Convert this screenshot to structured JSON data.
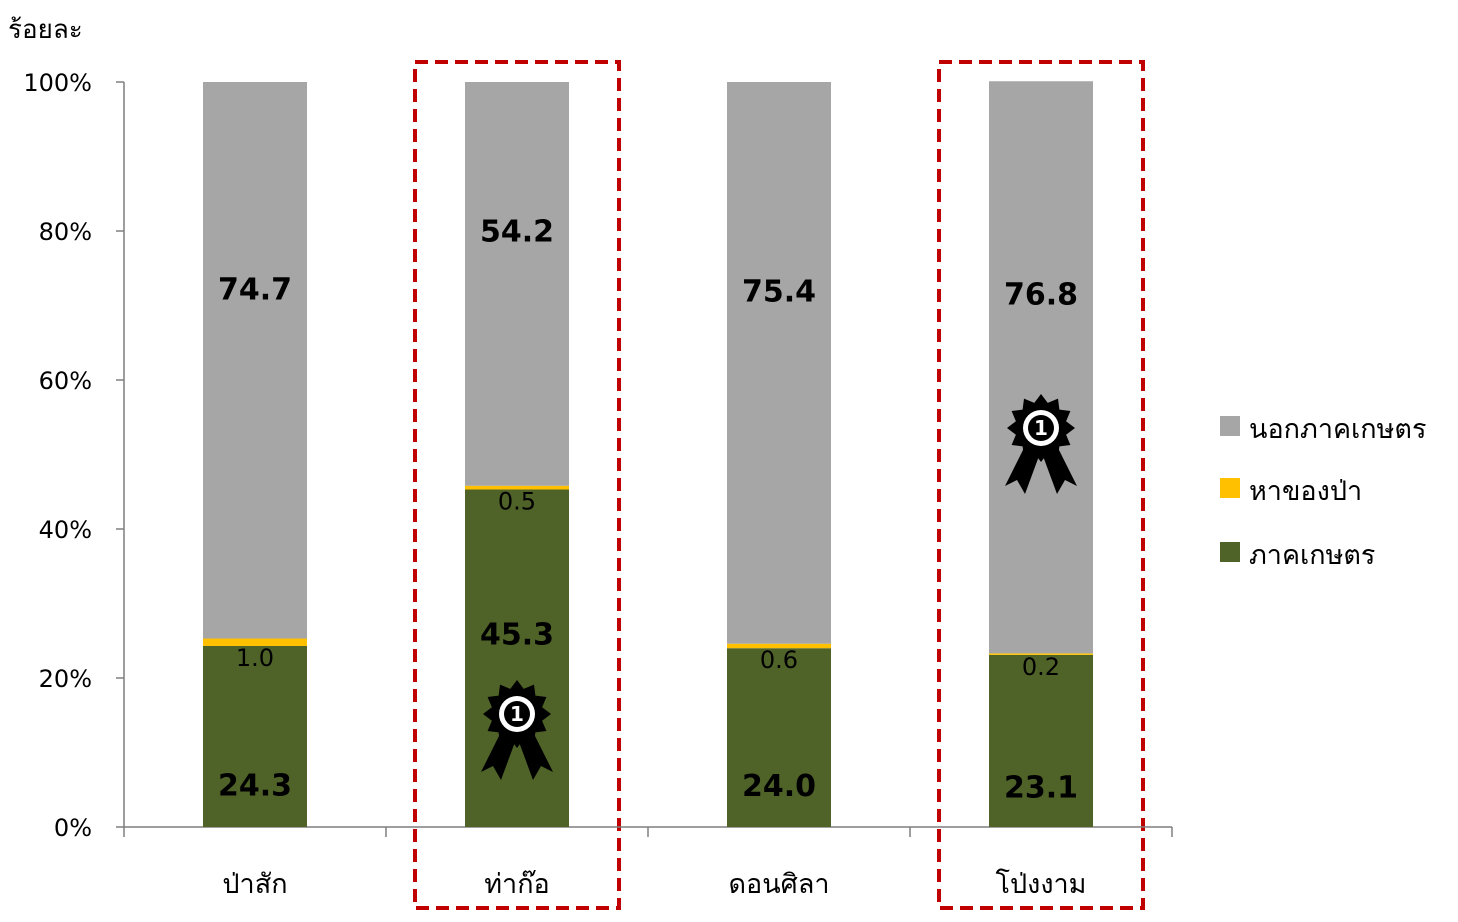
{
  "chart_data": {
    "type": "bar",
    "stacked": true,
    "ylabel": "ร้อยละ",
    "xlabel": "",
    "ylim": [
      0,
      100
    ],
    "yticks": [
      "0%",
      "20%",
      "40%",
      "60%",
      "80%",
      "100%"
    ],
    "categories": [
      "ป่าสัก",
      "ท่าก๊อ",
      "ดอนศิลา",
      "โป่งงาม"
    ],
    "series": [
      {
        "name": "ภาคเกษตร",
        "color": "#4f6228",
        "values": [
          24.3,
          45.3,
          24.0,
          23.1
        ],
        "labels": [
          "24.3",
          "45.3",
          "24.0",
          "23.1"
        ]
      },
      {
        "name": "หาของป่า",
        "color": "#ffc000",
        "values": [
          1.0,
          0.5,
          0.6,
          0.2
        ],
        "labels": [
          "1.0",
          "0.5",
          "0.6",
          "0.2"
        ]
      },
      {
        "name": "นอกภาคเกษตร",
        "color": "#a6a6a6",
        "values": [
          74.7,
          54.2,
          75.4,
          76.8
        ],
        "labels": [
          "74.7",
          "54.2",
          "75.4",
          "76.8"
        ]
      }
    ],
    "legend_order": [
      "นอกภาคเกษตร",
      "หาของป่า",
      "ภาคเกษตร"
    ],
    "legend_position": "right",
    "highlighted_categories": [
      "ท่าก๊อ",
      "โป่งงาม"
    ],
    "highlight_color": "#c00000",
    "badge": {
      "icon": "rank-ribbon-icon",
      "text": "1",
      "placements": [
        {
          "category": "ท่าก๊อ",
          "series": "ภาคเกษตร"
        },
        {
          "category": "โป่งงาม",
          "series": "นอกภาคเกษตร"
        }
      ]
    },
    "grid": false
  }
}
